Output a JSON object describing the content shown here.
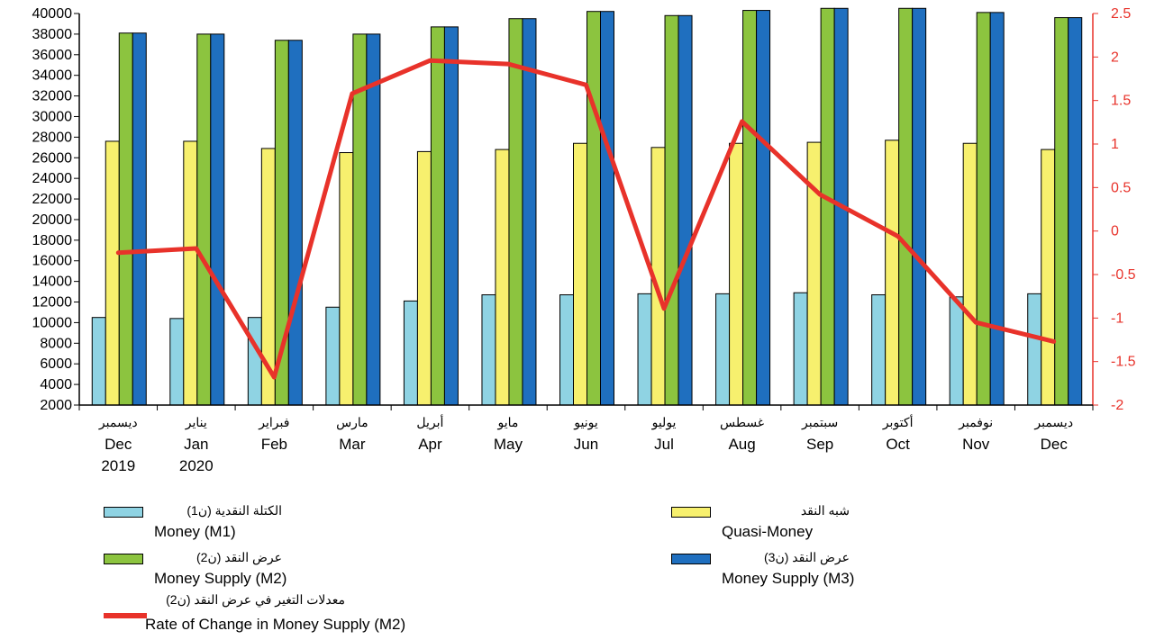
{
  "chart_data": {
    "type": "bar",
    "categories": [
      {
        "ar": "ديسمبر",
        "en": "Dec",
        "year": "2019"
      },
      {
        "ar": "يناير",
        "en": "Jan",
        "year": "2020"
      },
      {
        "ar": "فبراير",
        "en": "Feb",
        "year": ""
      },
      {
        "ar": "مارس",
        "en": "Mar",
        "year": ""
      },
      {
        "ar": "أبريل",
        "en": "Apr",
        "year": ""
      },
      {
        "ar": "مايو",
        "en": "May",
        "year": ""
      },
      {
        "ar": "يونيو",
        "en": "Jun",
        "year": ""
      },
      {
        "ar": "يوليو",
        "en": "Jul",
        "year": ""
      },
      {
        "ar": "غسطس",
        "en": "Aug",
        "year": ""
      },
      {
        "ar": "سبتمبر",
        "en": "Sep",
        "year": ""
      },
      {
        "ar": "أكتوبر",
        "en": "Oct",
        "year": ""
      },
      {
        "ar": "نوفمبر",
        "en": "Nov",
        "year": ""
      },
      {
        "ar": "ديسمبر",
        "en": "Dec",
        "year": ""
      }
    ],
    "y_left": {
      "min": 2000,
      "max": 40000,
      "step": 2000
    },
    "y_right": {
      "min": -2,
      "max": 2.5,
      "step": 0.5
    },
    "series": [
      {
        "key": "m1",
        "label_ar": "الكتلة النقدية (ن1)",
        "label_en": "Money (M1)",
        "color": "#8fd3e3",
        "values": [
          10500,
          10400,
          10500,
          11500,
          12100,
          12700,
          12700,
          12800,
          12800,
          12900,
          12700,
          12500,
          12800
        ]
      },
      {
        "key": "quasi",
        "label_ar": "شبه النقد",
        "label_en": "Quasi-Money",
        "color": "#f7f06e",
        "values": [
          27600,
          27600,
          26900,
          26500,
          26600,
          26800,
          27400,
          27000,
          27400,
          27500,
          27700,
          27400,
          26800
        ]
      },
      {
        "key": "m2",
        "label_ar": "عرض النقد (ن2)",
        "label_en": "Money Supply (M2)",
        "color": "#8cc43f",
        "values": [
          38100,
          38000,
          37400,
          38000,
          38700,
          39500,
          40200,
          39800,
          40300,
          40500,
          40500,
          40100,
          39600
        ]
      },
      {
        "key": "m3",
        "label_ar": "عرض النقد (ن3)",
        "label_en": "Money Supply (M3)",
        "color": "#1f6fbf",
        "values": [
          38100,
          38000,
          37400,
          38000,
          38700,
          39500,
          40200,
          39800,
          40300,
          40500,
          40500,
          40100,
          39600
        ]
      }
    ],
    "line": {
      "key": "rate",
      "label_ar": "معدلات التغير في عرض النقد (ن2)",
      "label_en": "Rate of Change in Money Supply (M2)",
      "color": "#e8322a",
      "axis": "right",
      "values": [
        -0.25,
        -0.2,
        -1.68,
        1.58,
        1.96,
        1.92,
        1.68,
        -0.89,
        1.26,
        0.42,
        -0.06,
        -1.05,
        -1.27
      ]
    },
    "legend_position": "bottom",
    "grid": false
  }
}
